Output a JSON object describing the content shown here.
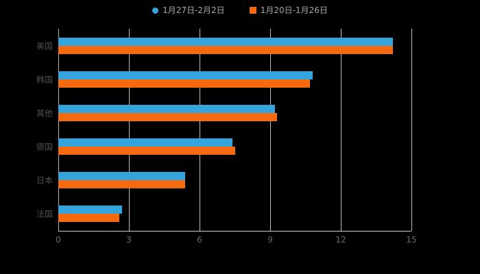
{
  "legend": {
    "items": [
      {
        "label": "1月27日-2月2日",
        "color": "#35a3dc",
        "shape": "circle"
      },
      {
        "label": "1月20日-1月26日",
        "color": "#f5690f",
        "shape": "square"
      }
    ]
  },
  "chart_data": {
    "type": "bar",
    "orientation": "horizontal",
    "title": "",
    "xlabel": "",
    "ylabel": "",
    "categories": [
      "美国",
      "韩国",
      "其他",
      "德国",
      "日本",
      "法国"
    ],
    "series": [
      {
        "name": "1月27日-2月2日",
        "color": "#35a3dc",
        "values": [
          14.2,
          10.8,
          9.2,
          7.4,
          5.4,
          2.7
        ]
      },
      {
        "name": "1月20日-1月26日",
        "color": "#f5690f",
        "values": [
          14.2,
          10.7,
          9.3,
          7.5,
          5.4,
          2.6
        ]
      }
    ],
    "xlim": [
      0,
      15
    ],
    "xticks": [
      0,
      3,
      6,
      9,
      12,
      15
    ],
    "grid": true,
    "legend_position": "top",
    "background": "#000000",
    "axis_line_color": "#cfcfcf",
    "gridline_color": "#dedede",
    "tick_label_color": "#6b6b6b",
    "category_label_color": "#4f4f4f"
  }
}
